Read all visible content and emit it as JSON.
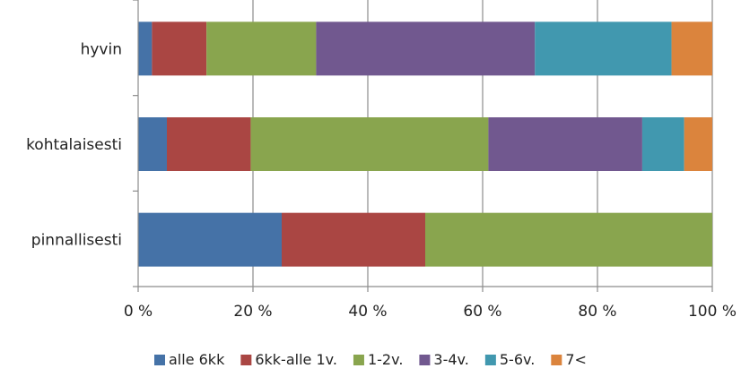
{
  "chart_data": {
    "type": "bar",
    "orientation": "horizontal",
    "stacked": true,
    "percent": true,
    "categories": [
      "hyvin",
      "kohtalaisesti",
      "pinnallisesti"
    ],
    "series": [
      {
        "name": "alle 6kk",
        "color": "#4572A7",
        "values": [
          2.4,
          5.0,
          25.0
        ]
      },
      {
        "name": "6kk-alle 1v.",
        "color": "#AA4643",
        "values": [
          9.5,
          14.6,
          25.0
        ]
      },
      {
        "name": "1-2v.",
        "color": "#89A54E",
        "values": [
          19.1,
          41.4,
          50.0
        ]
      },
      {
        "name": "3-4v.",
        "color": "#71588F",
        "values": [
          38.1,
          26.8,
          0
        ]
      },
      {
        "name": "5-6v.",
        "color": "#4198AF",
        "values": [
          23.8,
          7.3,
          0
        ]
      },
      {
        "name": "7<",
        "color": "#DB843D",
        "values": [
          7.1,
          4.9,
          0
        ]
      }
    ],
    "xlim": [
      0,
      100
    ],
    "xticks": [
      "0 %",
      "20 %",
      "40 %",
      "60 %",
      "80 %",
      "100 %"
    ],
    "grid": true,
    "legend_position": "bottom",
    "title": "",
    "xlabel": "",
    "ylabel": ""
  }
}
